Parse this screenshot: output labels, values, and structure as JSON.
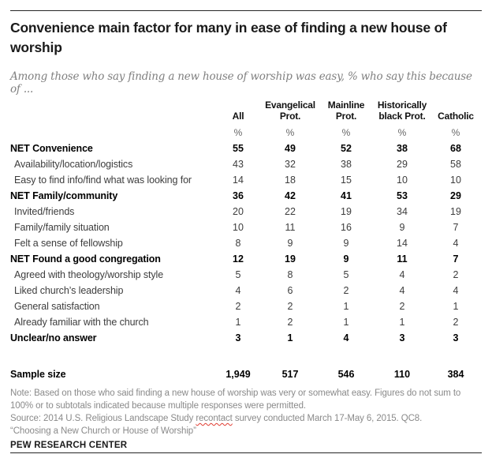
{
  "chart_data": {
    "type": "table",
    "title": "Convenience main factor for many in ease of finding a new house of worship",
    "subtitle": "Among those who say finding a new house of worship was easy, % who say this because of ...",
    "unit": "%",
    "columns": [
      "All",
      "Evangelical Prot.",
      "Mainline Prot.",
      "Historically black Prot.",
      "Catholic"
    ],
    "rows": [
      {
        "label": "NET Convenience",
        "bold": true,
        "values": [
          55,
          49,
          52,
          38,
          68
        ]
      },
      {
        "label": "Availability/location/logistics",
        "bold": false,
        "values": [
          43,
          32,
          38,
          29,
          58
        ]
      },
      {
        "label": "Easy to find info/find what was looking for",
        "bold": false,
        "values": [
          14,
          18,
          15,
          10,
          10
        ]
      },
      {
        "label": "NET Family/community",
        "bold": true,
        "values": [
          36,
          42,
          41,
          53,
          29
        ]
      },
      {
        "label": "Invited/friends",
        "bold": false,
        "values": [
          20,
          22,
          19,
          34,
          19
        ]
      },
      {
        "label": "Family/family situation",
        "bold": false,
        "values": [
          10,
          11,
          16,
          9,
          7
        ]
      },
      {
        "label": "Felt a sense of fellowship",
        "bold": false,
        "values": [
          8,
          9,
          9,
          14,
          4
        ]
      },
      {
        "label": "NET Found a good congregation",
        "bold": true,
        "values": [
          12,
          19,
          9,
          11,
          7
        ]
      },
      {
        "label": "Agreed with theology/worship style",
        "bold": false,
        "values": [
          5,
          8,
          5,
          4,
          2
        ]
      },
      {
        "label": "Liked church’s leadership",
        "bold": false,
        "values": [
          4,
          6,
          2,
          4,
          4
        ]
      },
      {
        "label": "General satisfaction",
        "bold": false,
        "values": [
          2,
          2,
          1,
          2,
          1
        ]
      },
      {
        "label": "Already familiar with the church",
        "bold": false,
        "values": [
          1,
          2,
          1,
          1,
          2
        ]
      },
      {
        "label": "Unclear/no answer",
        "bold": true,
        "values": [
          3,
          1,
          4,
          3,
          3
        ]
      }
    ],
    "sample_row": {
      "label": "Sample size",
      "values": [
        "1,949",
        "517",
        "546",
        "110",
        "384"
      ]
    }
  },
  "footer": {
    "note": "Note: Based on those who said finding a new house of worship was very or somewhat easy. Figures do not sum to 100% or to subtotals indicated because multiple responses were permitted.",
    "source_prefix": "Source: 2014 U.S. Religious Landscape Study ",
    "source_misspelled_word": "recontact",
    "source_suffix": " survey conducted March 17-May 6, 2015. QC8.",
    "quote_line": "“Choosing a New Church or House of Worship”",
    "brand": "PEW RESEARCH CENTER"
  }
}
